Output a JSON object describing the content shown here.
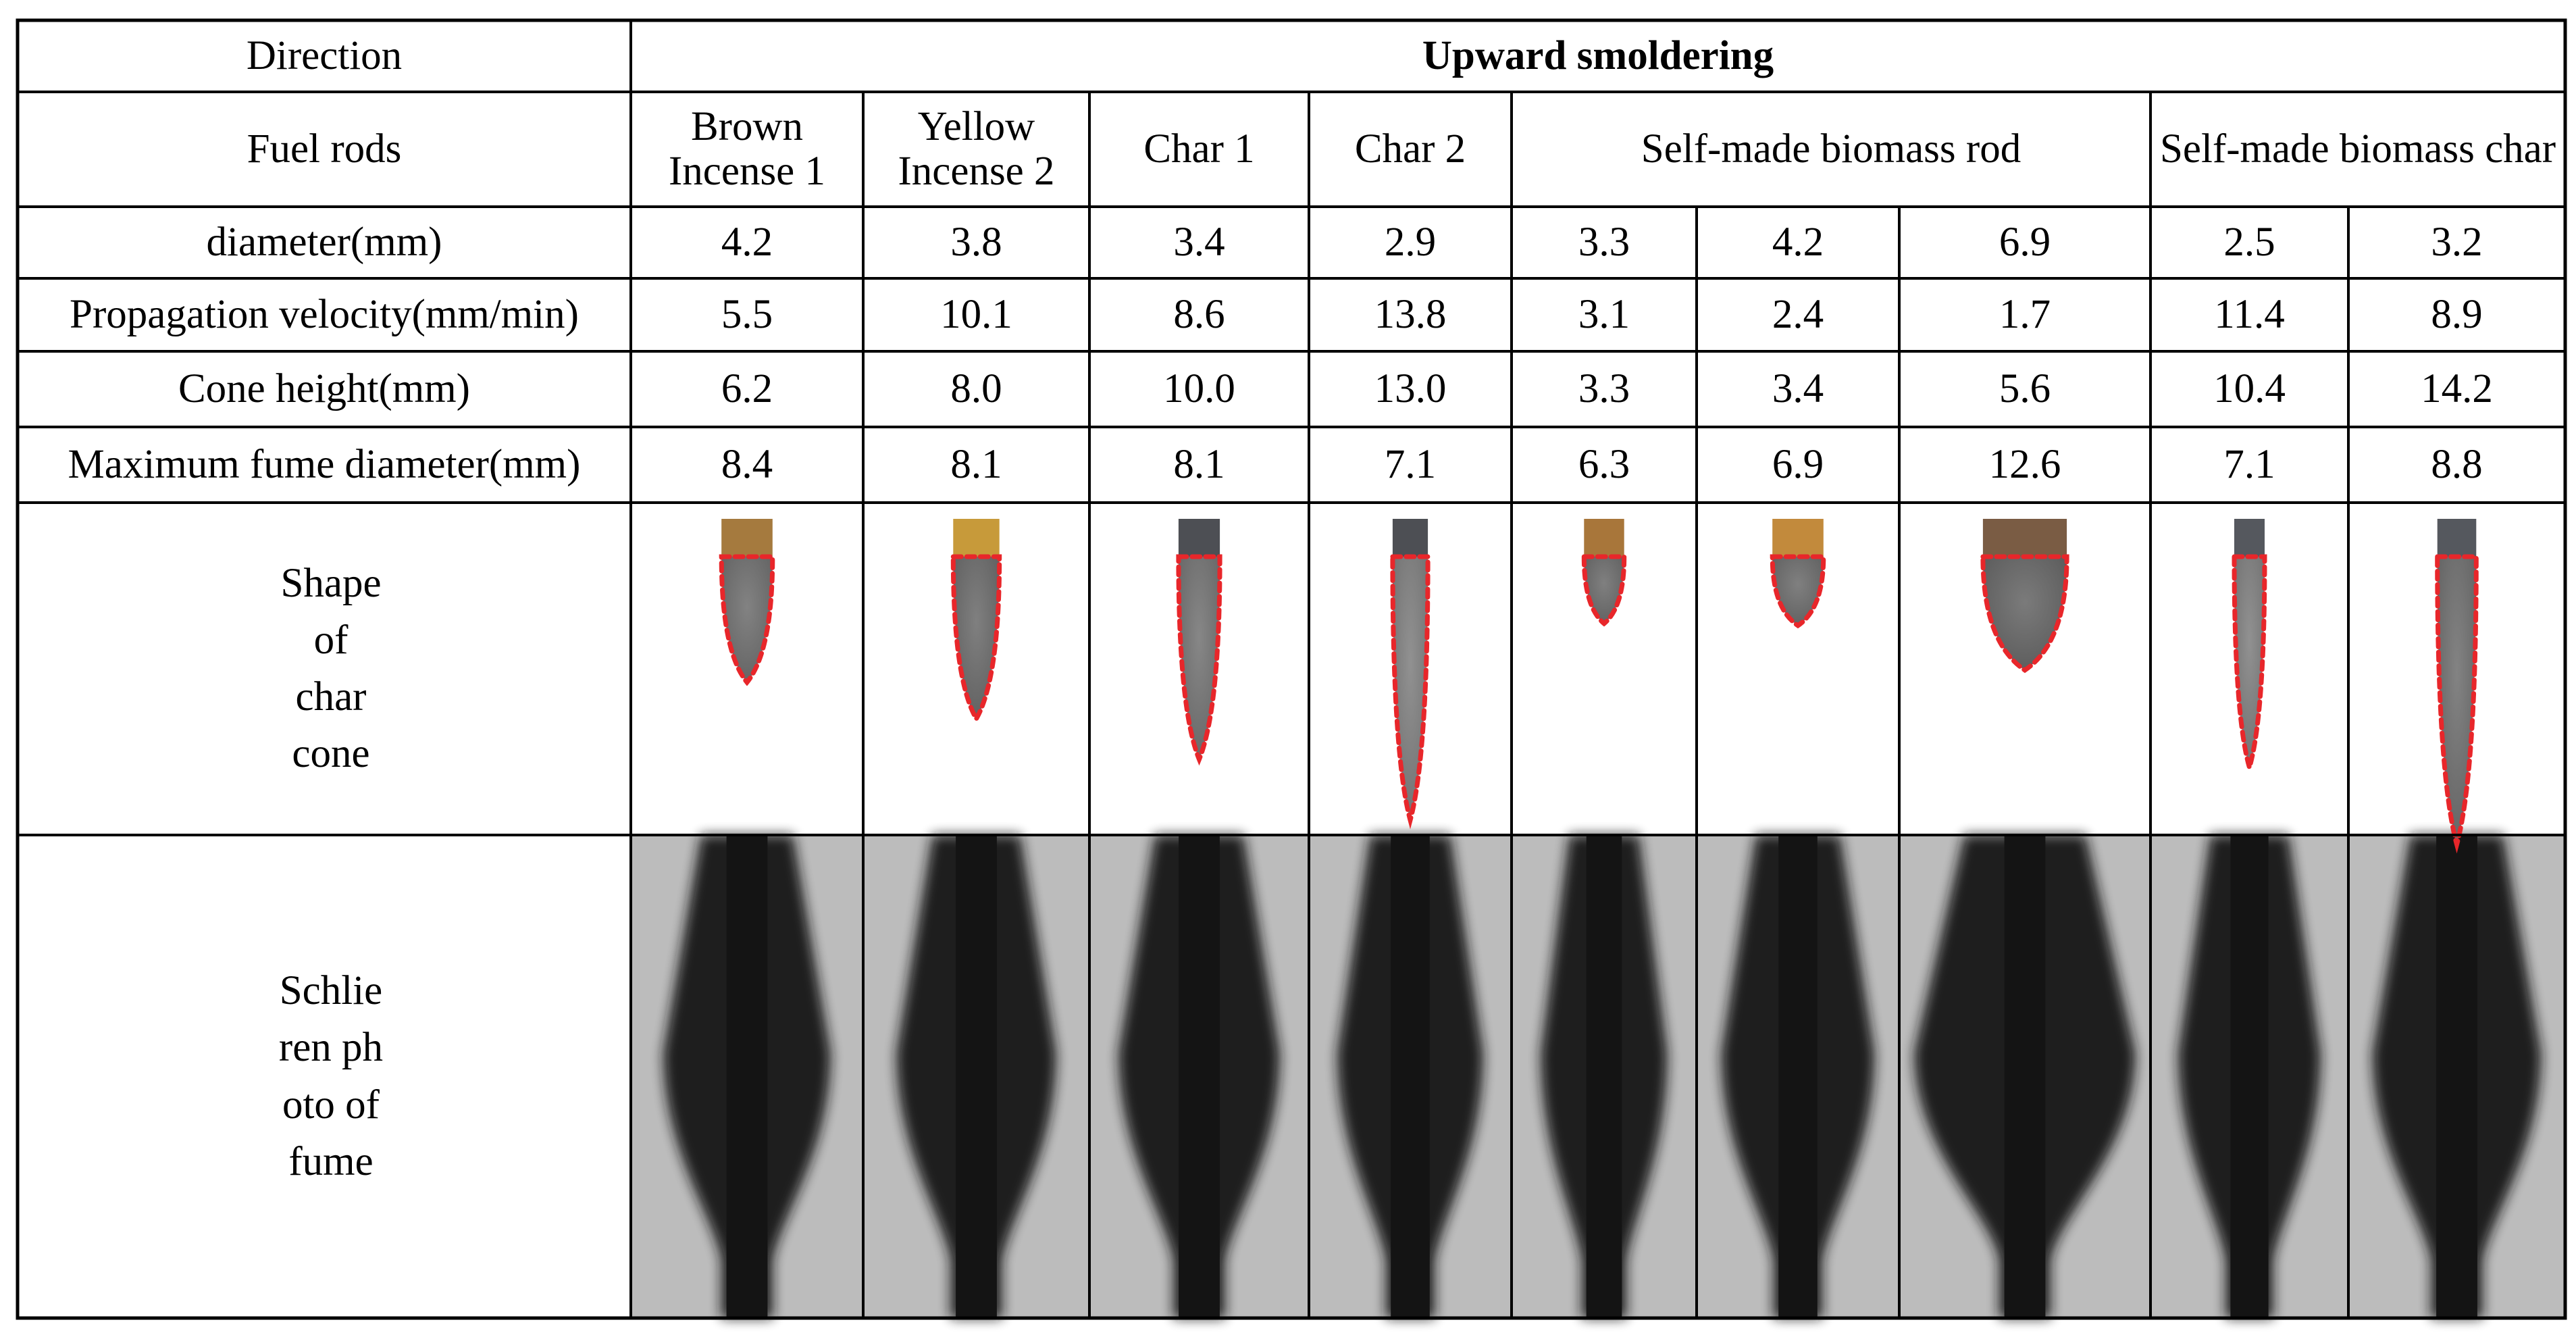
{
  "header": {
    "direction_label": "Direction",
    "direction_value": "Upward smoldering"
  },
  "fuel_rods": {
    "label": "Fuel rods",
    "groups": [
      {
        "name": "Brown Incense 1"
      },
      {
        "name": "Yellow Incense 2"
      },
      {
        "name": "Char 1"
      },
      {
        "name": "Char 2"
      },
      {
        "name": "Self-made biomass rod"
      },
      {
        "name": "Self-made biomass char"
      }
    ]
  },
  "rows": [
    {
      "label": "diameter(mm)",
      "values": [
        "4.2",
        "3.8",
        "3.4",
        "2.9",
        "3.3",
        "4.2",
        "6.9",
        "2.5",
        "3.2"
      ]
    },
    {
      "label": "Propagation velocity(mm/min)",
      "values": [
        "5.5",
        "10.1",
        "8.6",
        "13.8",
        "3.1",
        "2.4",
        "1.7",
        "11.4",
        "8.9"
      ]
    },
    {
      "label": "Cone height(mm)",
      "values": [
        "6.2",
        "8.0",
        "10.0",
        "13.0",
        "3.3",
        "3.4",
        "5.6",
        "10.4",
        "14.2"
      ]
    },
    {
      "label": "Maximum fume diameter(mm)",
      "values": [
        "8.4",
        "8.1",
        "8.1",
        "7.1",
        "6.3",
        "6.9",
        "12.6",
        "7.1",
        "8.8"
      ]
    }
  ],
  "shape_row": {
    "label": "Shape of char cone",
    "samples": [
      {
        "top_color": "#a57a3e",
        "body_color": "#6f6f6f",
        "outline_color": "#e8262a"
      },
      {
        "top_color": "#c79a3a",
        "body_color": "#6a6a6a",
        "outline_color": "#e8262a"
      },
      {
        "top_color": "#4d4f54",
        "body_color": "#777777",
        "outline_color": "#e8262a"
      },
      {
        "top_color": "#4d4f54",
        "body_color": "#8a8a8a",
        "outline_color": "#e8262a"
      },
      {
        "top_color": "#a8763a",
        "body_color": "#6a6a6a",
        "outline_color": "#e8262a"
      },
      {
        "top_color": "#c28a3c",
        "body_color": "#6a6a6a",
        "outline_color": "#e8262a"
      },
      {
        "top_color": "#7a5c44",
        "body_color": "#616161",
        "outline_color": "#e8262a"
      },
      {
        "top_color": "#55585e",
        "body_color": "#8a8a8a",
        "outline_color": "#e8262a"
      },
      {
        "top_color": "#55585e",
        "body_color": "#707070",
        "outline_color": "#e8262a"
      }
    ]
  },
  "photo_row": {
    "label": "Schlieren photo of fume",
    "background_color": "#bcbcbc",
    "fume_color": "#141414"
  },
  "colors": {
    "grid_line": "#000000",
    "text": "#000000",
    "background": "#ffffff"
  }
}
